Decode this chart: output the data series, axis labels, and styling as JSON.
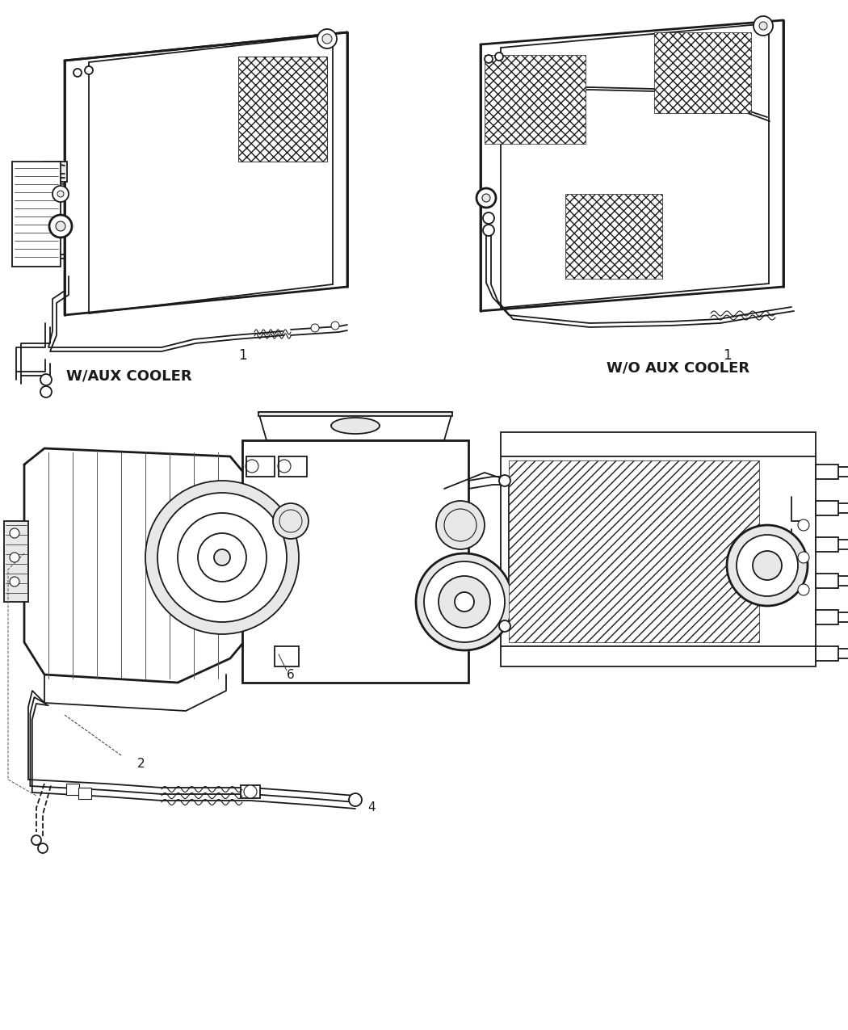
{
  "background_color": "#ffffff",
  "line_color": "#1a1a1a",
  "label1_left": "W/AUX COOLER",
  "label1_right": "W/O AUX COOLER",
  "part_label_1": "1",
  "part_label_2": "2",
  "part_label_4": "4",
  "part_label_6": "6",
  "fig_width": 10.5,
  "fig_height": 12.75,
  "dpi": 100,
  "lw_main": 1.3,
  "lw_thick": 2.0,
  "lw_thin": 0.7,
  "gray_light": "#e8e8e8",
  "gray_mid": "#cccccc",
  "hatch_density": "xxx"
}
